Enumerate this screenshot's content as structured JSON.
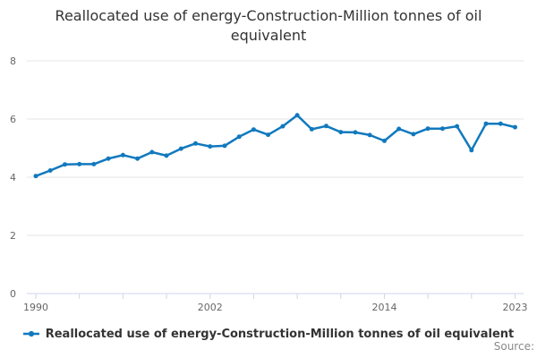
{
  "title": "Reallocated use of energy-Construction-Million tonnes of oil equivalent",
  "source_label": "Source:",
  "colors": {
    "series": "#1179be",
    "title_text": "#333333",
    "legend_text": "#333333",
    "axis_label": "#666666",
    "gridline": "#e6e6e6",
    "axis_line": "#ccd6eb",
    "source_text": "#888888",
    "background": "#ffffff"
  },
  "chart_data": {
    "type": "line",
    "title": "Reallocated use of energy-Construction-Million tonnes of oil equivalent",
    "x": [
      1990,
      1991,
      1992,
      1993,
      1994,
      1995,
      1996,
      1997,
      1998,
      1999,
      2000,
      2001,
      2002,
      2003,
      2004,
      2005,
      2006,
      2007,
      2008,
      2009,
      2010,
      2011,
      2012,
      2013,
      2014,
      2015,
      2016,
      2017,
      2018,
      2019,
      2020,
      2021,
      2022,
      2023
    ],
    "series": [
      {
        "name": "Reallocated use of energy-Construction-Million tonnes of oil equivalent",
        "values": [
          4.04,
          4.23,
          4.44,
          4.45,
          4.45,
          4.64,
          4.76,
          4.64,
          4.86,
          4.74,
          4.98,
          5.16,
          5.06,
          5.08,
          5.39,
          5.64,
          5.46,
          5.75,
          6.13,
          5.65,
          5.76,
          5.55,
          5.54,
          5.45,
          5.25,
          5.66,
          5.48,
          5.67,
          5.67,
          5.75,
          4.93,
          5.84,
          5.84,
          5.72
        ]
      }
    ],
    "xlabel": "",
    "ylabel": "",
    "ylim": [
      0,
      8
    ],
    "yticks": [
      0,
      2,
      4,
      6,
      8
    ],
    "xtick_step": 3,
    "xtick_labels": [
      "1990",
      "2002",
      "2014",
      "2023"
    ],
    "grid": true,
    "legend_position": "bottom",
    "marker": "circle"
  }
}
